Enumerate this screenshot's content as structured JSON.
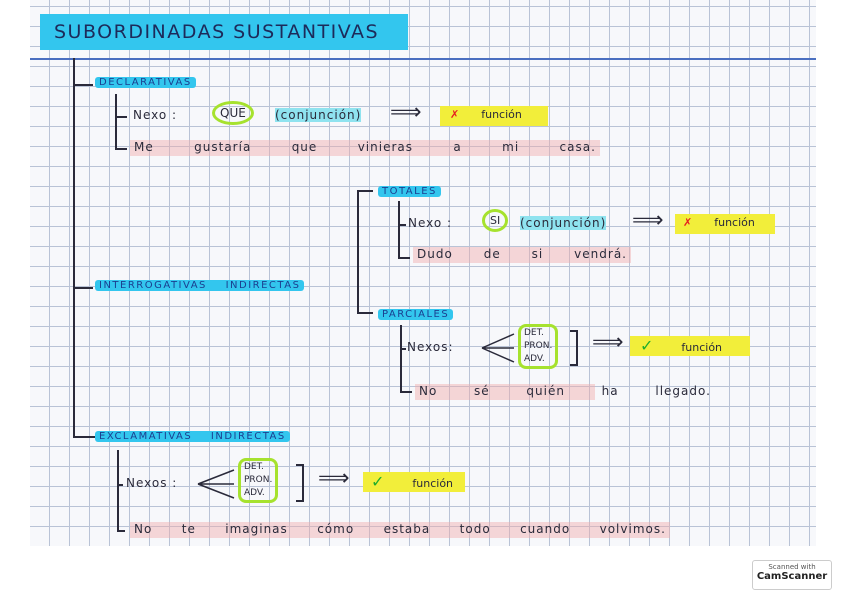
{
  "title": "SUBORDINADAS SUSTANTIVAS",
  "declarativas": {
    "label": "DECLARATIVAS",
    "nexo_label": "Nexo :",
    "nexo": "QUE",
    "tipo": "(conjunción)",
    "arrow": "⟹",
    "mark": "✗",
    "funcion": "función",
    "example": [
      "Me",
      "gustaría",
      "que",
      "vinieras",
      "a",
      "mi",
      "casa."
    ]
  },
  "interrogativas": {
    "label": "INTERROGATIVAS INDIRECTAS",
    "totales": {
      "label": "TOTALES",
      "nexo_label": "Nexo :",
      "nexo": "SI",
      "tipo": "(conjunción)",
      "arrow": "⟹",
      "mark": "✗",
      "funcion": "función",
      "example": [
        "Dudo",
        "de",
        "si",
        "vendrá."
      ]
    },
    "parciales": {
      "label": "PARCIALES",
      "nexo_label": "Nexos:",
      "nexos": [
        "DET.",
        "PRON.",
        "ADV."
      ],
      "arrow": "⟹",
      "mark": "✓",
      "funcion": "función",
      "example": [
        "No",
        "sé",
        "quién",
        "ha",
        "llegado."
      ]
    }
  },
  "exclamativas": {
    "label": "EXCLAMATIVAS INDIRECTAS",
    "nexo_label": "Nexos :",
    "nexos": [
      "DET.",
      "PRON.",
      "ADV."
    ],
    "arrow": "⟹",
    "mark": "✓",
    "funcion": "función",
    "example": [
      "No",
      "te",
      "imaginas",
      "cómo",
      "estaba",
      "todo",
      "cuando",
      "volvimos."
    ]
  },
  "badge": {
    "line1": "Scanned with",
    "line2": "CamScanner"
  },
  "colors": {
    "title_highlight": "#33c6ee",
    "nexo_circle": "#a6e22e",
    "function_highlight": "#f2ee3a",
    "example_highlight": "#f0aaaa",
    "header_line": "#4a6fc0"
  }
}
